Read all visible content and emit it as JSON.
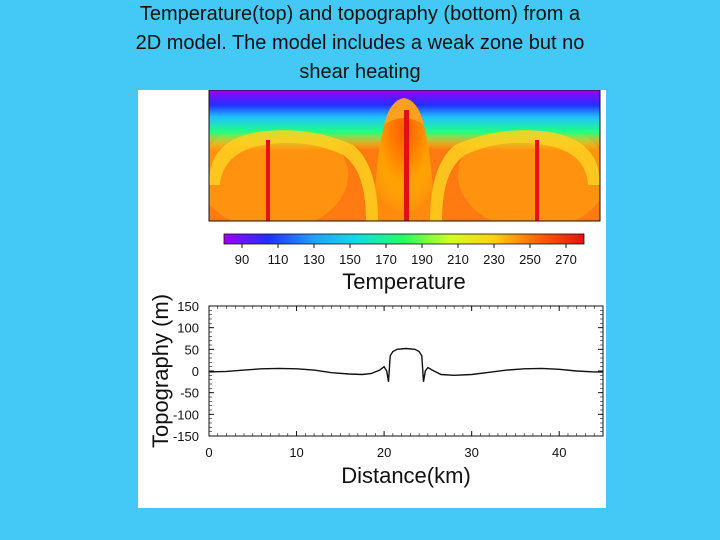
{
  "slide": {
    "title_line1": "Temperature(top) and topography (bottom) from a",
    "title_line2": "2D model. The model includes a weak zone but no",
    "title_line3": "shear heating",
    "background_color": "#44c8f5"
  },
  "chart_data": [
    {
      "type": "heatmap",
      "title": "",
      "colorbar": {
        "label": "Temperature",
        "ticks": [
          "90",
          "110",
          "130",
          "150",
          "170",
          "190",
          "210",
          "230",
          "250",
          "270"
        ],
        "range": [
          80,
          280
        ],
        "colormap": [
          "#a000ff",
          "#2030ff",
          "#20a0ff",
          "#10e0e0",
          "#20ff60",
          "#d0ff20",
          "#ffd010",
          "#ff6000",
          "#e81010"
        ]
      },
      "x_range_km": [
        0,
        45
      ],
      "description_features": {
        "background_temperature": 250,
        "cold_top_boundary_temperature": 90,
        "central_upwelling_center_km": 22.5,
        "cold_downwellings_km": [
          6,
          22.5,
          37
        ]
      }
    },
    {
      "type": "line",
      "xlabel": "Distance(km)",
      "ylabel": "Topography (m)",
      "xlim": [
        0,
        45
      ],
      "ylim": [
        -150,
        150
      ],
      "x_ticks": [
        "0",
        "10",
        "20",
        "30",
        "40"
      ],
      "y_ticks": [
        "150",
        "100",
        "50",
        "0",
        "-50",
        "-100",
        "-150"
      ],
      "series": [
        {
          "x": [
            0,
            2,
            4,
            6,
            8,
            10,
            12,
            14,
            16,
            17.5,
            18.5,
            19.5,
            20.0,
            20.3,
            20.5,
            20.7,
            21.0,
            21.5,
            22.5,
            23.5,
            24.0,
            24.3,
            24.5,
            24.7,
            25.0,
            25.5,
            26.5,
            28,
            30,
            32,
            34,
            36,
            38,
            40,
            42,
            44,
            45
          ],
          "y": [
            -2,
            -1,
            2,
            5,
            6,
            5,
            2,
            -4,
            -7,
            -8,
            -6,
            2,
            10,
            0,
            -25,
            35,
            45,
            50,
            52,
            50,
            45,
            35,
            -25,
            0,
            8,
            2,
            -8,
            -10,
            -8,
            -3,
            2,
            5,
            6,
            4,
            0,
            -2,
            -2
          ]
        }
      ]
    }
  ]
}
